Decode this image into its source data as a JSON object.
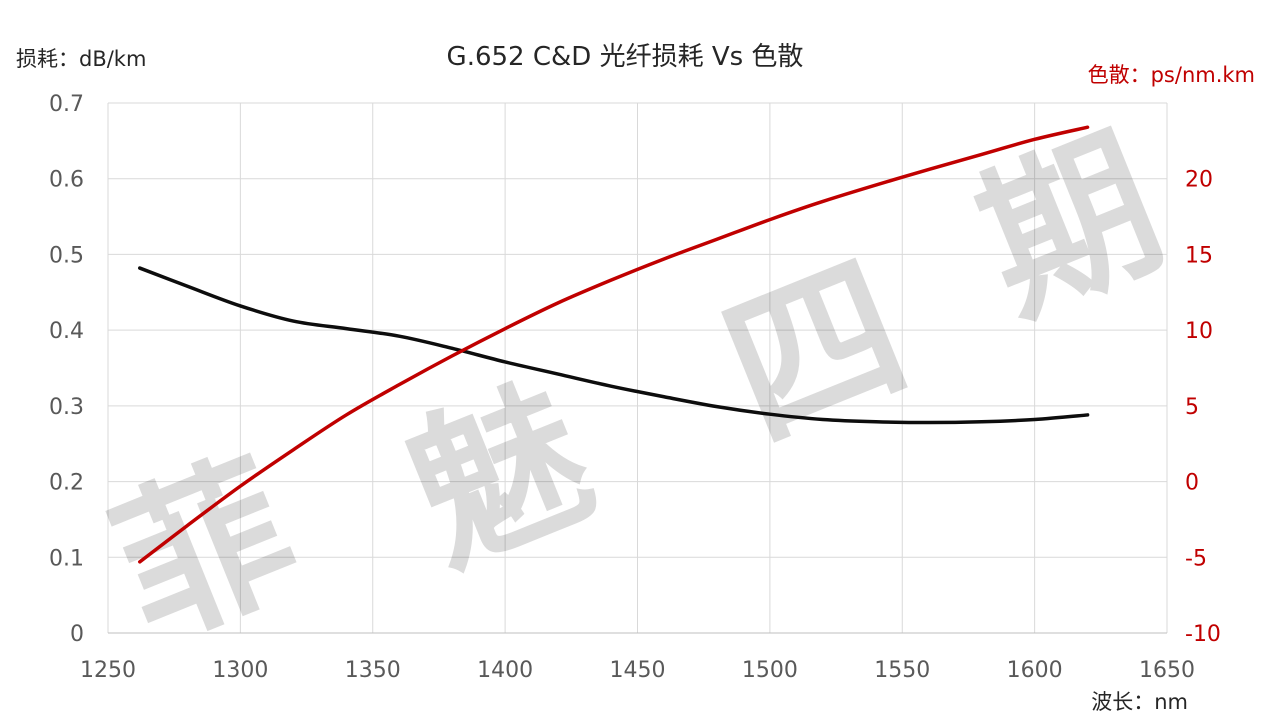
{
  "chart_data": {
    "type": "line",
    "title": "G.652 C&D 光纤损耗 Vs 色散",
    "xlabel": "波长：nm",
    "ylabel_left": "损耗：dB/km",
    "ylabel_right": "色散：ps/nm.km",
    "xlim": [
      1250,
      1650
    ],
    "ylim_left": [
      0,
      0.7
    ],
    "ylim_right": [
      -10,
      25
    ],
    "x_ticks": [
      "1250",
      "1300",
      "1350",
      "1400",
      "1450",
      "1500",
      "1550",
      "1600",
      "1650"
    ],
    "y_ticks_left": [
      "0",
      "0.1",
      "0.2",
      "0.3",
      "0.4",
      "0.5",
      "0.6",
      "0.7"
    ],
    "y_ticks_right": [
      "-10",
      "-5",
      "0",
      "5",
      "10",
      "15",
      "20"
    ],
    "grid": true,
    "series": [
      {
        "name": "",
        "axis": "left",
        "color": "#0d0d0d",
        "x": [
          1262,
          1280,
          1300,
          1320,
          1340,
          1360,
          1380,
          1400,
          1420,
          1440,
          1460,
          1480,
          1500,
          1520,
          1540,
          1560,
          1580,
          1600,
          1620
        ],
        "y": [
          0.482,
          0.458,
          0.432,
          0.412,
          0.402,
          0.392,
          0.376,
          0.358,
          0.342,
          0.326,
          0.312,
          0.299,
          0.289,
          0.282,
          0.279,
          0.278,
          0.279,
          0.282,
          0.288
        ]
      },
      {
        "name": "",
        "axis": "right",
        "color": "#c00000",
        "x": [
          1262,
          1280,
          1300,
          1320,
          1340,
          1360,
          1380,
          1400,
          1420,
          1440,
          1460,
          1480,
          1500,
          1520,
          1550,
          1580,
          1600,
          1620
        ],
        "y": [
          -5.3,
          -2.9,
          -0.3,
          2.1,
          4.4,
          6.4,
          8.3,
          10.1,
          11.8,
          13.3,
          14.7,
          16.0,
          17.3,
          18.5,
          20.1,
          21.6,
          22.6,
          23.4
        ]
      }
    ]
  },
  "watermark": [
    "菲",
    "魅",
    "四",
    "期"
  ]
}
